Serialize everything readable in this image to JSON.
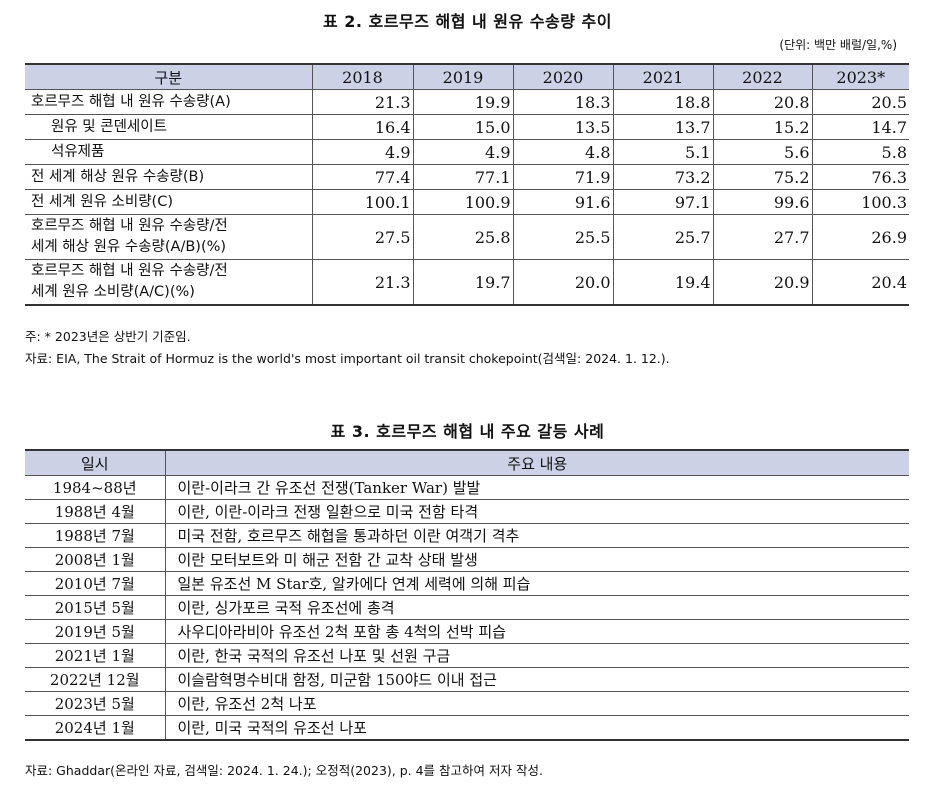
{
  "table2": {
    "title": "표 2. 호르무즈 해협 내 원유 수송량 추이",
    "unit": "(단위: 백만 배럴/일,%)",
    "header": [
      "구분",
      "2018",
      "2019",
      "2020",
      "2021",
      "2022",
      "2023*"
    ],
    "rows": [
      {
        "label": "호르무즈 해협 내 원유 수송량(A)",
        "values": [
          "21.3",
          "19.9",
          "18.3",
          "18.8",
          "20.8",
          "20.5"
        ]
      },
      {
        "label": "원유 및 콘덴세이트",
        "values": [
          "16.4",
          "15.0",
          "13.5",
          "13.7",
          "15.2",
          "14.7"
        ]
      },
      {
        "label": "석유제품",
        "values": [
          "4.9",
          "4.9",
          "4.8",
          "5.1",
          "5.6",
          "5.8"
        ]
      },
      {
        "label": "전 세계 해상 원유 수송량(B)",
        "values": [
          "77.4",
          "77.1",
          "71.9",
          "73.2",
          "75.2",
          "76.3"
        ]
      },
      {
        "label": "전 세계 원유 소비량(C)",
        "values": [
          "100.1",
          "100.9",
          "91.6",
          "97.1",
          "99.6",
          "100.3"
        ]
      },
      {
        "label_line1": "호르무즈 해협 내 원유 수송량/전",
        "label_line2": "세계 해상 원유 수송량(A/B)(%)",
        "values": [
          "27.5",
          "25.8",
          "25.5",
          "25.7",
          "27.7",
          "26.9"
        ]
      },
      {
        "label_line1": "호르무즈 해협 내 원유 수송량/전",
        "label_line2": "세계 원유 소비량(A/C)(%)",
        "values": [
          "21.3",
          "19.7",
          "20.0",
          "19.4",
          "20.9",
          "20.4"
        ]
      }
    ],
    "note": "주: * 2023년은 상반기 기준임.",
    "source": "자료: EIA, The Strait of Hormuz is the world's most important oil transit chokepoint(검색일: 2024. 1. 12.)."
  },
  "table3": {
    "title": "표 3. 호르무즈 해협 내 주요 갈등 사례",
    "header": [
      "일시",
      "주요 내용"
    ],
    "rows": [
      {
        "date": "1984~88년",
        "event": "이란-이라크 간 유조선 전쟁(Tanker War) 발발"
      },
      {
        "date": "1988년 4월",
        "event": "이란, 이란-이라크 전쟁 일환으로 미국 전함 타격"
      },
      {
        "date": "1988년 7월",
        "event": "미국 전함, 호르무즈 해협을 통과하던 이란 여객기 격추"
      },
      {
        "date": "2008년 1월",
        "event": "이란 모터보트와 미 해군 전함 간 교착 상태 발생"
      },
      {
        "date": "2010년 7월",
        "event": "일본 유조선 M Star호, 알카에다 연계 세력에 의해 피습"
      },
      {
        "date": "2015년 5월",
        "event": "이란, 싱가포르 국적 유조선에 총격"
      },
      {
        "date": "2019년 5월",
        "event": "사우디아라비아 유조선 2척 포함 총 4척의 선박 피습"
      },
      {
        "date": "2021년 1월",
        "event": "이란, 한국 국적의 유조선 나포 및 선원 구금"
      },
      {
        "date": "2022년 12월",
        "event": "이슬람혁명수비대 함정, 미군함 150야드 이내 접근"
      },
      {
        "date": "2023년 5월",
        "event": "이란, 유조선 2척 나포"
      },
      {
        "date": "2024년 1월",
        "event": "이란, 미국 국적의 유조선 나포"
      }
    ],
    "source": "자료: Ghaddar(온라인 자료, 검색일: 2024. 1. 24.); 오정적(2023), p. 4를 참고하여 저자 작성."
  }
}
